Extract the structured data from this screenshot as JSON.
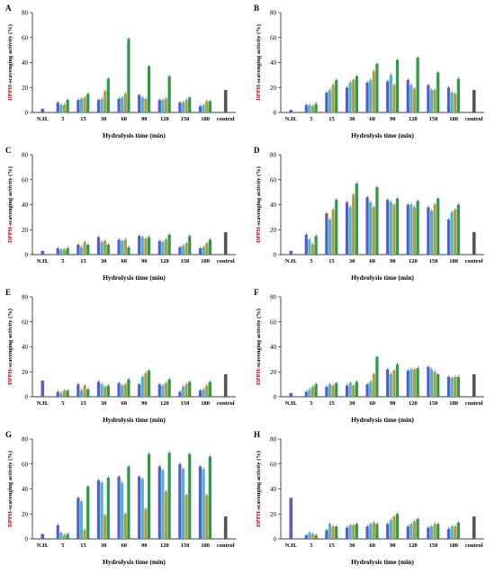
{
  "colors": {
    "series": [
      "#5b5bc6",
      "#4db3d6",
      "#b49a44",
      "#2e9a46"
    ],
    "control": "#555555",
    "axis": "#000000",
    "ylabel_dpph": "#c00000",
    "ylabel_rest": "#000000"
  },
  "chart_data": [
    {
      "panel": "A",
      "type": "bar",
      "categories": [
        "N.H.",
        "5",
        "15",
        "30",
        "60",
        "90",
        "120",
        "150",
        "180",
        "control"
      ],
      "xlabel": "Hydrolysis time (min)",
      "ylabel_prefix": "DPPH",
      "ylabel_suffix": "-scavenging activity (%)",
      "yticks": [
        "0",
        "20",
        "40",
        "60",
        "80"
      ],
      "ylim": [
        0,
        80
      ],
      "single": [
        3,
        null,
        null,
        null,
        null,
        null,
        null,
        null,
        null,
        18
      ],
      "series": [
        {
          "values": [
            null,
            8,
            10,
            10,
            11,
            14,
            10,
            8,
            5,
            null
          ]
        },
        {
          "values": [
            null,
            6,
            11,
            11,
            12,
            12,
            10,
            8,
            6,
            null
          ]
        },
        {
          "values": [
            null,
            6,
            12,
            17,
            15,
            11,
            11,
            10,
            9,
            null
          ]
        },
        {
          "values": [
            null,
            10,
            15,
            27,
            59,
            37,
            29,
            12,
            9,
            null
          ]
        }
      ]
    },
    {
      "panel": "B",
      "type": "bar",
      "categories": [
        "N.H.",
        "5",
        "15",
        "30",
        "60",
        "90",
        "120",
        "150",
        "180",
        "control"
      ],
      "xlabel": "Hydrolysis time (min)",
      "ylabel_prefix": "DPPH",
      "ylabel_suffix": "-scavenging activity (%)",
      "yticks": [
        "0",
        "20",
        "40",
        "60",
        "80"
      ],
      "ylim": [
        0,
        80
      ],
      "single": [
        2,
        null,
        null,
        null,
        null,
        null,
        null,
        null,
        null,
        18
      ],
      "series": [
        {
          "values": [
            null,
            6,
            16,
            20,
            24,
            25,
            26,
            22,
            20,
            null
          ]
        },
        {
          "values": [
            null,
            6,
            18,
            24,
            26,
            30,
            22,
            18,
            16,
            null
          ]
        },
        {
          "values": [
            null,
            5,
            22,
            26,
            33,
            22,
            19,
            18,
            15,
            null
          ]
        },
        {
          "values": [
            null,
            7,
            26,
            29,
            39,
            42,
            44,
            32,
            27,
            null
          ]
        }
      ]
    },
    {
      "panel": "C",
      "type": "bar",
      "categories": [
        "N.H.",
        "5",
        "15",
        "30",
        "60",
        "90",
        "120",
        "150",
        "180",
        "control"
      ],
      "xlabel": "Hydrolysis time (min)",
      "ylabel_prefix": "DPPH",
      "ylabel_suffix": "-scavenging activity (%)",
      "yticks": [
        "0",
        "20",
        "40",
        "60",
        "80"
      ],
      "ylim": [
        0,
        80
      ],
      "single": [
        3,
        null,
        null,
        null,
        null,
        null,
        null,
        null,
        null,
        18
      ],
      "series": [
        {
          "values": [
            null,
            5,
            8,
            14,
            12,
            15,
            11,
            6,
            5,
            null
          ]
        },
        {
          "values": [
            null,
            4,
            6,
            10,
            11,
            14,
            10,
            7,
            6,
            null
          ]
        },
        {
          "values": [
            null,
            4,
            10,
            11,
            12,
            13,
            12,
            9,
            9,
            null
          ]
        },
        {
          "values": [
            null,
            5,
            8,
            8,
            6,
            14,
            16,
            15,
            12,
            null
          ]
        }
      ]
    },
    {
      "panel": "D",
      "type": "bar",
      "categories": [
        "N.H.",
        "5",
        "15",
        "30",
        "60",
        "90",
        "120",
        "150",
        "180",
        "control"
      ],
      "xlabel": "Hydrolysis time (min)",
      "ylabel_prefix": "DPPH",
      "ylabel_suffix": "-scavenging activity (%)",
      "yticks": [
        "0",
        "20",
        "40",
        "60",
        "80"
      ],
      "ylim": [
        0,
        80
      ],
      "single": [
        3,
        null,
        null,
        null,
        null,
        null,
        null,
        null,
        null,
        18
      ],
      "series": [
        {
          "values": [
            null,
            16,
            33,
            42,
            46,
            44,
            40,
            38,
            28,
            null
          ]
        },
        {
          "values": [
            null,
            12,
            28,
            38,
            42,
            42,
            40,
            35,
            34,
            null
          ]
        },
        {
          "values": [
            null,
            8,
            36,
            48,
            38,
            40,
            38,
            40,
            36,
            null
          ]
        },
        {
          "values": [
            null,
            15,
            44,
            57,
            54,
            45,
            43,
            45,
            40,
            null
          ]
        }
      ]
    },
    {
      "panel": "E",
      "type": "bar",
      "categories": [
        "N.H.",
        "5",
        "15",
        "30",
        "60",
        "90",
        "120",
        "150",
        "180",
        "control"
      ],
      "xlabel": "Hydrolysis time (min)",
      "ylabel_prefix": "DPPH",
      "ylabel_suffix": "-scavenging activity (%)",
      "yticks": [
        "0",
        "20",
        "40",
        "60",
        "80"
      ],
      "ylim": [
        0,
        80
      ],
      "single": [
        13,
        null,
        null,
        null,
        null,
        null,
        null,
        null,
        null,
        18
      ],
      "series": [
        {
          "values": [
            null,
            4,
            10,
            12,
            11,
            10,
            10,
            4,
            5,
            null
          ]
        },
        {
          "values": [
            null,
            3,
            5,
            10,
            9,
            16,
            9,
            8,
            6,
            null
          ]
        },
        {
          "values": [
            null,
            5,
            9,
            8,
            10,
            19,
            11,
            10,
            9,
            null
          ]
        },
        {
          "values": [
            null,
            5,
            6,
            9,
            14,
            21,
            14,
            12,
            12,
            null
          ]
        }
      ]
    },
    {
      "panel": "F",
      "type": "bar",
      "categories": [
        "N.H.",
        "5",
        "15",
        "30",
        "60",
        "90",
        "120",
        "150",
        "180",
        "control"
      ],
      "xlabel": "Hydrolysis time (min)",
      "ylabel_prefix": "DPPH",
      "ylabel_suffix": "-scavenging activity (%)",
      "yticks": [
        "0",
        "20",
        "40",
        "60",
        "80"
      ],
      "ylim": [
        0,
        80
      ],
      "single": [
        3,
        null,
        null,
        null,
        null,
        null,
        null,
        null,
        null,
        18
      ],
      "series": [
        {
          "values": [
            null,
            4,
            8,
            9,
            10,
            22,
            21,
            24,
            16,
            null
          ]
        },
        {
          "values": [
            null,
            6,
            10,
            11,
            12,
            18,
            22,
            22,
            15,
            null
          ]
        },
        {
          "values": [
            null,
            8,
            9,
            9,
            18,
            21,
            22,
            20,
            16,
            null
          ]
        },
        {
          "values": [
            null,
            10,
            11,
            12,
            32,
            26,
            23,
            18,
            16,
            null
          ]
        }
      ]
    },
    {
      "panel": "G",
      "type": "bar",
      "categories": [
        "N.H.",
        "5",
        "15",
        "30",
        "60",
        "90",
        "120",
        "150",
        "180",
        "control"
      ],
      "xlabel": "Hydrolysis time (min)",
      "ylabel_prefix": "DPPH",
      "ylabel_suffix": "-scavenging activity (%)",
      "yticks": [
        "0",
        "20",
        "40",
        "60",
        "80"
      ],
      "ylim": [
        0,
        80
      ],
      "single": [
        4,
        null,
        null,
        null,
        null,
        null,
        null,
        null,
        null,
        18
      ],
      "series": [
        {
          "values": [
            null,
            11,
            33,
            47,
            50,
            50,
            58,
            60,
            58,
            null
          ]
        },
        {
          "values": [
            null,
            5,
            30,
            45,
            45,
            48,
            55,
            56,
            56,
            null
          ]
        },
        {
          "values": [
            null,
            3,
            7,
            19,
            20,
            24,
            38,
            35,
            35,
            null
          ]
        },
        {
          "values": [
            null,
            4,
            42,
            49,
            58,
            68,
            69,
            68,
            66,
            null
          ]
        }
      ]
    },
    {
      "panel": "H",
      "type": "bar",
      "categories": [
        "N.H.",
        "5",
        "15",
        "30",
        "60",
        "90",
        "120",
        "150",
        "180",
        "control"
      ],
      "xlabel": "Hydrolysis time (min)",
      "ylabel_prefix": "DPPH",
      "ylabel_suffix": "-scavenging activity (%)",
      "yticks": [
        "0",
        "20",
        "40",
        "60",
        "80"
      ],
      "ylim": [
        0,
        80
      ],
      "single": [
        33,
        null,
        null,
        null,
        null,
        null,
        null,
        null,
        null,
        18
      ],
      "series": [
        {
          "values": [
            null,
            3,
            7,
            9,
            10,
            12,
            10,
            9,
            8,
            null
          ]
        },
        {
          "values": [
            null,
            5,
            12,
            11,
            12,
            15,
            12,
            10,
            10,
            null
          ]
        },
        {
          "values": [
            null,
            4,
            10,
            11,
            13,
            18,
            14,
            12,
            10,
            null
          ]
        },
        {
          "values": [
            null,
            3,
            10,
            12,
            12,
            20,
            16,
            12,
            13,
            null
          ]
        }
      ]
    }
  ]
}
